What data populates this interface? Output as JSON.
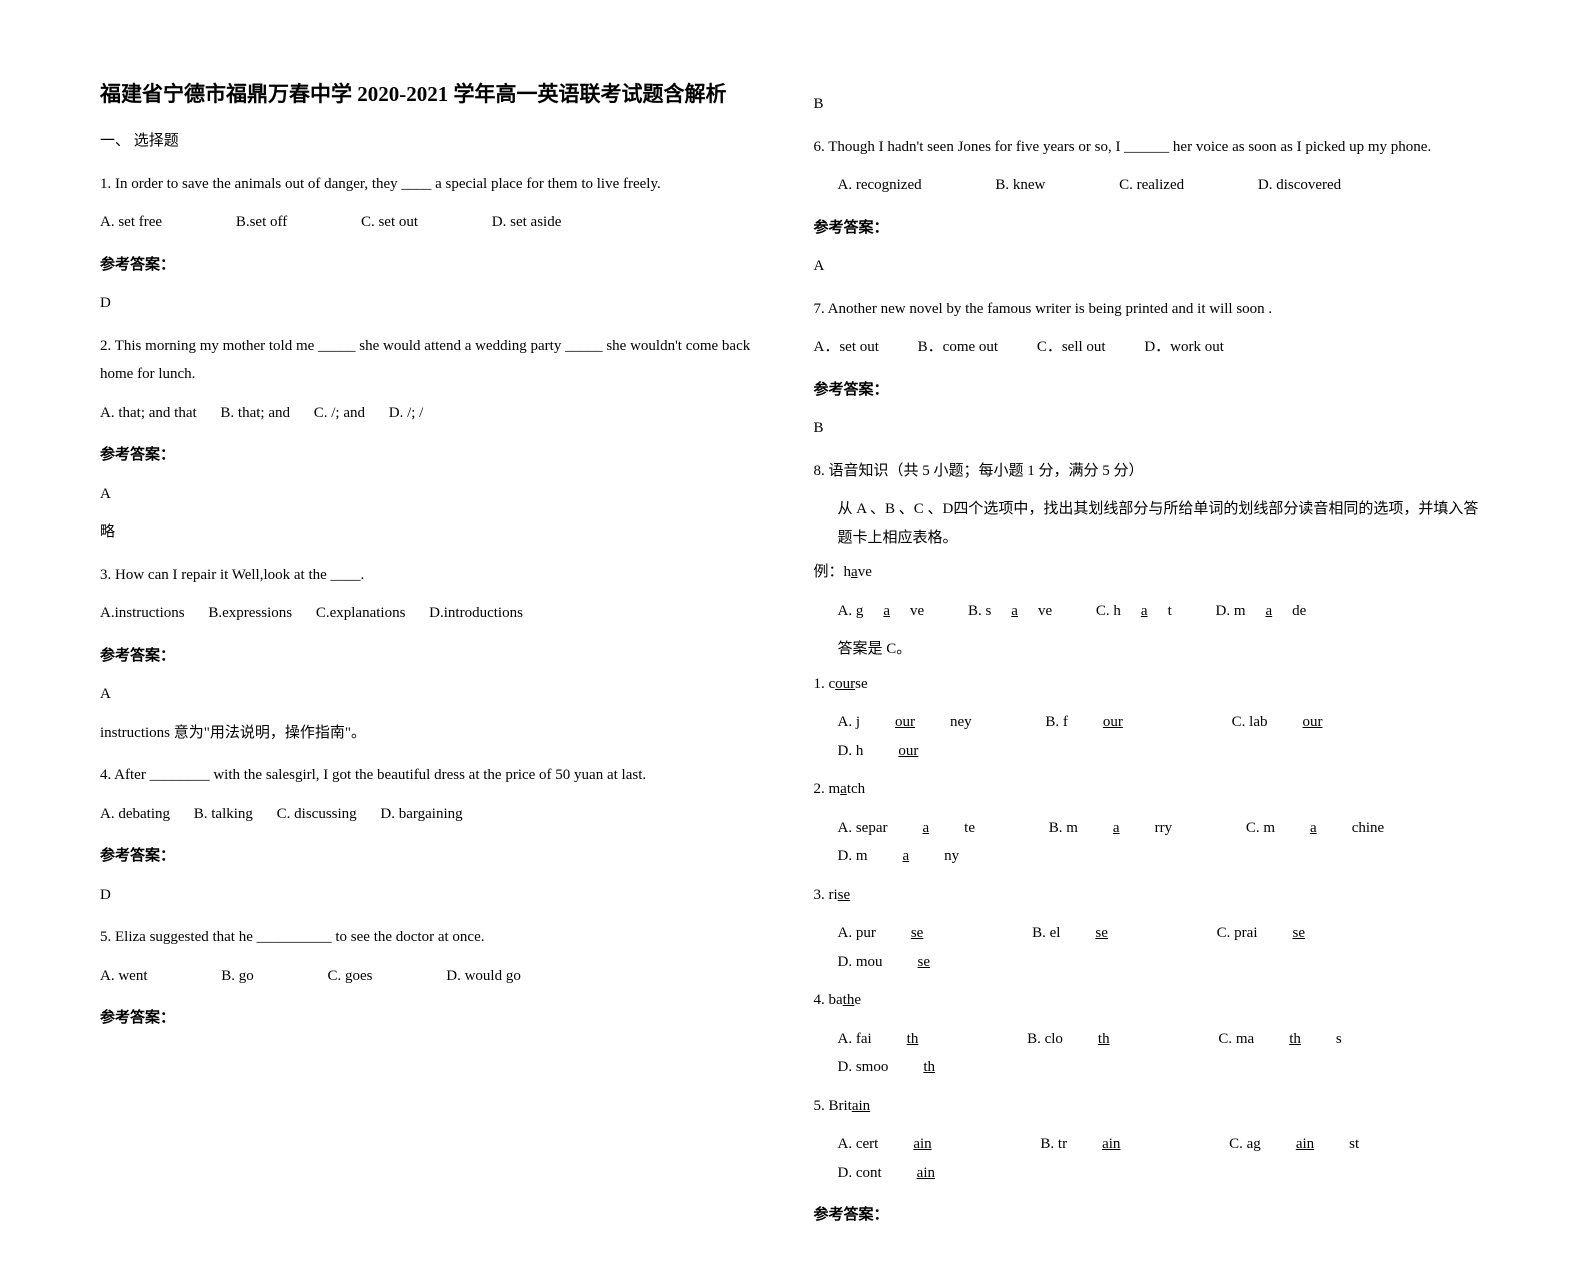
{
  "title": "福建省宁德市福鼎万春中学 2020-2021 学年高一英语联考试题含解析",
  "section1": "一、 选择题",
  "q1": {
    "text": "1. In order to save the animals out of danger, they ____ a special place for them to live freely.",
    "a": "A. set free",
    "b": "B.set off",
    "c": "C. set out",
    "d": "D. set aside",
    "label": "参考答案：",
    "ans": "D"
  },
  "q2": {
    "text": "2. This morning my mother told me _____ she would attend a wedding party _____ she wouldn't come back home for lunch.",
    "a": "A. that; and that",
    "b": "B. that; and",
    "c": "C. /; and",
    "d": "D. /; /",
    "label": "参考答案：",
    "ans": "A",
    "note": "略"
  },
  "q3": {
    "text": "3. How can I repair it Well,look at the ____.",
    "a": "A.instructions",
    "b": "B.expressions",
    "c": "C.explanations",
    "d": "D.introductions",
    "label": "参考答案：",
    "ans": "A",
    "note": "instructions 意为\"用法说明，操作指南\"。"
  },
  "q4": {
    "text": "4. After ________ with the salesgirl, I got the beautiful dress at the price of 50 yuan at last.",
    "a": "A. debating",
    "b": "B. talking",
    "c": "C. discussing",
    "d": "D. bargaining",
    "label": "参考答案：",
    "ans": "D"
  },
  "q5": {
    "text": "5. Eliza suggested that he __________ to see the doctor at once.",
    "a": "A. went",
    "b": "B. go",
    "c": "C. goes",
    "d": "D. would go",
    "label": "参考答案：",
    "ans": "B"
  },
  "q6": {
    "text": "6.  Though I hadn't seen Jones for five years or so, I ______ her voice as soon as I picked up my phone.",
    "a": "A. recognized",
    "b": "B. knew",
    "c": "C. realized",
    "d": "D. discovered",
    "label": "参考答案：",
    "ans": "A"
  },
  "q7": {
    "text": "7. Another new novel by the famous writer is being printed and it will soon           .",
    "a": "A．set out",
    "b": "B．come out",
    "c": "C．sell out",
    "d": "D．work out",
    "label": "参考答案：",
    "ans": "B"
  },
  "q8": {
    "heading": "8. 语音知识（共 5 小题；每小题 1 分，满分 5 分）",
    "instruction": "从 A 、B 、C 、D四个选项中，找出其划线部分与所给单词的划线部分读音相同的选项，并填入答题卡上相应表格。",
    "example_label": "例：h",
    "example_word": "a",
    "example_suffix": "ve",
    "ex_a": "A. g",
    "ex_a_u": "a",
    "ex_a_s": "ve",
    "ex_b": "B. s",
    "ex_b_u": "a",
    "ex_b_s": "ve",
    "ex_c": "C. h",
    "ex_c_u": "a",
    "ex_c_s": "t",
    "ex_d": "D. m",
    "ex_d_u": "a",
    "ex_d_s": "de",
    "example_ans": "答案是 C。",
    "p1": {
      "num": "1. c",
      "u": "our",
      "s": "se",
      "a": "A. j",
      "a_u": "our",
      "a_s": "ney",
      "b": "B. f",
      "b_u": "our",
      "b_s": "",
      "c": "C. lab",
      "c_u": "our",
      "c_s": "",
      "d": "D. h",
      "d_u": "our",
      "d_s": ""
    },
    "p2": {
      "num": "2. m",
      "u": "a",
      "s": "tch",
      "a": "A. separ",
      "a_u": "a",
      "a_s": "te",
      "b": "B. m",
      "b_u": "a",
      "b_s": "rry",
      "c": "C. m",
      "c_u": "a",
      "c_s": "chine",
      "d": "D. m",
      "d_u": "a",
      "d_s": "ny"
    },
    "p3": {
      "num": "3. ri",
      "u": "se",
      "s": "",
      "a": "A. pur",
      "a_u": "se",
      "a_s": "",
      "b": "B. el",
      "b_u": "se",
      "b_s": "",
      "c": "C. prai",
      "c_u": "se",
      "c_s": "",
      "d": "D. mou",
      "d_u": "se",
      "d_s": ""
    },
    "p4": {
      "num": "4. ba",
      "u": "th",
      "s": "e",
      "a": "A. fai",
      "a_u": "th",
      "a_s": "",
      "b": "B. clo",
      "b_u": "th",
      "b_s": "",
      "c": "C. ma",
      "c_u": "th",
      "c_s": "s",
      "d": "D. smoo",
      "d_u": "th",
      "d_s": ""
    },
    "p5": {
      "num": "5. Brit",
      "u": "ain",
      "s": "",
      "a": "A. cert",
      "a_u": "ain",
      "a_s": "",
      "b": "B. tr",
      "b_u": "ain",
      "b_s": "",
      "c": "C. ag",
      "c_u": "ain",
      "c_s": "st",
      "d": "D. cont",
      "d_u": "ain",
      "d_s": ""
    },
    "label": "参考答案："
  }
}
